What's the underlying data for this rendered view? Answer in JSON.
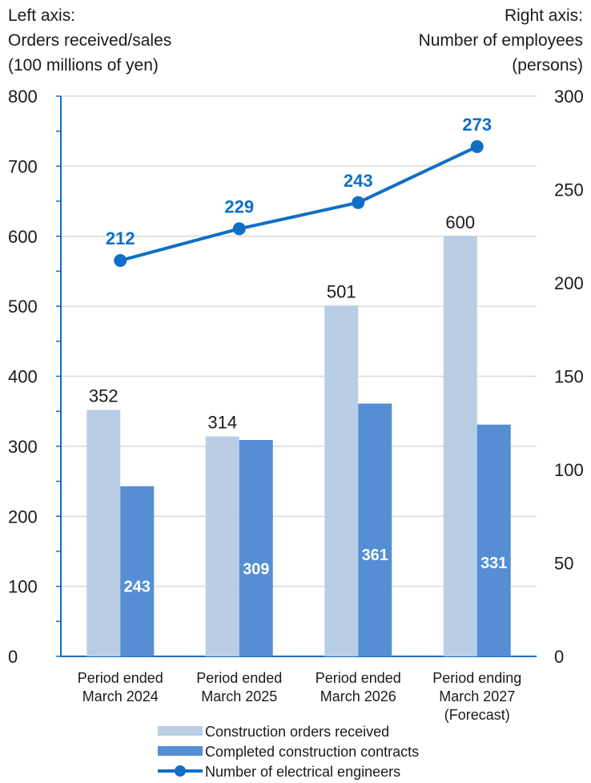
{
  "chart_data": {
    "type": "bar",
    "left_axis_title": [
      "Left axis:",
      "Orders received/sales",
      "(100 millions of yen)"
    ],
    "right_axis_title": [
      "Right axis:",
      "Number of employees",
      "(persons)"
    ],
    "categories": [
      [
        "Period ended",
        "March 2024"
      ],
      [
        "Period ended",
        "March 2025"
      ],
      [
        "Period ended",
        "March 2026"
      ],
      [
        "Period ending",
        "March 2027",
        "(Forecast)"
      ]
    ],
    "y_left": {
      "min": 0,
      "max": 800,
      "ticks": [
        0,
        100,
        200,
        300,
        400,
        500,
        600,
        700,
        800
      ]
    },
    "y_right": {
      "min": 0,
      "max": 300,
      "ticks": [
        0,
        50,
        100,
        150,
        200,
        250,
        300
      ]
    },
    "series": [
      {
        "name": "Construction orders received",
        "kind": "bar",
        "axis": "left",
        "color": "#b9cde5",
        "label_color": "#1a1a1a",
        "label_position": "above",
        "values": [
          352,
          314,
          501,
          600
        ]
      },
      {
        "name": "Completed construction contracts",
        "kind": "bar",
        "axis": "left",
        "color": "#558ed5",
        "label_color": "#ffffff",
        "label_position": "inside",
        "values": [
          243,
          309,
          361,
          331
        ]
      },
      {
        "name": "Number of electrical engineers",
        "kind": "line",
        "axis": "right",
        "color": "#0f6fc6",
        "label_color": "#0f6fc6",
        "label_position": "above",
        "values": [
          212,
          229,
          243,
          273
        ]
      }
    ],
    "grid": true,
    "legend_position": "bottom"
  }
}
